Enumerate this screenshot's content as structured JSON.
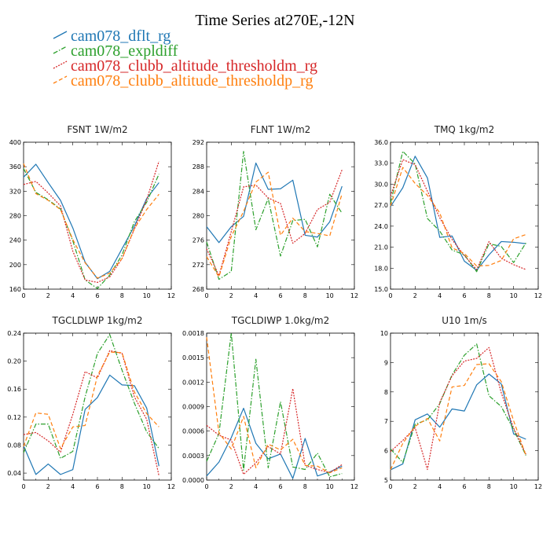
{
  "figure": {
    "title": "Time Series at270E,-12N"
  },
  "legend": [
    {
      "name": "cam078_dflt_rg",
      "color": "#1f77b4",
      "dash": "solid"
    },
    {
      "name": "cam078_expldiff",
      "color": "#2ca02c",
      "dash": "dashdot"
    },
    {
      "name": "cam078_clubb_altitude_thresholdm_rg",
      "color": "#d62728",
      "dash": "dotted"
    },
    {
      "name": "cam078_clubb_altitude_thresholdp_rg",
      "color": "#ff7f0e",
      "dash": "dashed"
    }
  ],
  "chart_data": [
    {
      "type": "line",
      "title": "FSNT 1W/m2",
      "x": [
        0,
        1,
        2,
        3,
        4,
        5,
        6,
        7,
        8,
        9,
        10,
        11
      ],
      "xlim": [
        0,
        12
      ],
      "xticks": [
        0,
        2,
        4,
        6,
        8,
        10,
        12
      ],
      "ylim": [
        160,
        400
      ],
      "yticks": [
        160,
        200,
        240,
        280,
        320,
        360,
        400
      ],
      "ytick_labels": [
        "160",
        "200",
        "240",
        "280",
        "320",
        "360",
        "400"
      ],
      "series": [
        {
          "name": "cam078_dflt_rg",
          "values": [
            343,
            364,
            334,
            305,
            260,
            204,
            177,
            189,
            226,
            263,
            308,
            334
          ]
        },
        {
          "name": "cam078_expldiff",
          "values": [
            357,
            318,
            306,
            291,
            239,
            175,
            161,
            183,
            216,
            270,
            302,
            348
          ]
        },
        {
          "name": "cam078_clubb_altitude_thresholdm_rg",
          "values": [
            331,
            336,
            317,
            296,
            222,
            175,
            171,
            180,
            210,
            258,
            306,
            369
          ]
        },
        {
          "name": "cam078_clubb_altitude_thresholdp_rg",
          "values": [
            365,
            316,
            305,
            290,
            241,
            203,
            178,
            186,
            210,
            259,
            290,
            315
          ]
        }
      ]
    },
    {
      "type": "line",
      "title": "FLNT 1W/m2",
      "x": [
        0,
        1,
        2,
        3,
        4,
        5,
        6,
        7,
        8,
        9,
        10,
        11
      ],
      "xlim": [
        0,
        12
      ],
      "xticks": [
        0,
        2,
        4,
        6,
        8,
        10,
        12
      ],
      "ylim": [
        268,
        292
      ],
      "yticks": [
        268,
        272,
        276,
        280,
        284,
        288,
        292
      ],
      "ytick_labels": [
        "268",
        "272",
        "276",
        "280",
        "284",
        "288",
        "292"
      ],
      "series": [
        {
          "name": "cam078_dflt_rg",
          "values": [
            278.2,
            275.6,
            278.2,
            279.9,
            288.6,
            284.3,
            284.4,
            285.8,
            276.8,
            276.5,
            279.0,
            284.8
          ]
        },
        {
          "name": "cam078_expldiff",
          "values": [
            275.7,
            269.6,
            270.9,
            290.5,
            277.7,
            282.8,
            273.4,
            279.2,
            279.4,
            274.9,
            283.5,
            280.4
          ]
        },
        {
          "name": "cam078_clubb_altitude_thresholdm_rg",
          "values": [
            274.6,
            270.2,
            277.4,
            284.7,
            285.0,
            282.9,
            282.0,
            275.5,
            277.1,
            281.0,
            282.2,
            287.5
          ]
        },
        {
          "name": "cam078_clubb_altitude_thresholdp_rg",
          "values": [
            273.3,
            270.0,
            276.6,
            280.7,
            285.5,
            287.1,
            276.8,
            279.6,
            277.4,
            277.1,
            276.7,
            283.6
          ]
        }
      ]
    },
    {
      "type": "line",
      "title": "TMQ 1kg/m2",
      "x": [
        0,
        1,
        2,
        3,
        4,
        5,
        6,
        7,
        8,
        9,
        10,
        11
      ],
      "xlim": [
        0,
        12
      ],
      "xticks": [
        0,
        2,
        4,
        6,
        8,
        10,
        12
      ],
      "ylim": [
        15,
        36
      ],
      "yticks": [
        15,
        18,
        21,
        24,
        27,
        30,
        33,
        36
      ],
      "ytick_labels": [
        "15.0",
        "18.0",
        "21.0",
        "24.0",
        "27.0",
        "30.0",
        "33.0",
        "36.0"
      ],
      "series": [
        {
          "name": "cam078_dflt_rg",
          "values": [
            26.8,
            29.5,
            34.0,
            30.9,
            22.4,
            22.6,
            19.0,
            17.7,
            19.9,
            21.8,
            21.7,
            21.5
          ]
        },
        {
          "name": "cam078_expldiff",
          "values": [
            27.3,
            34.7,
            32.9,
            25.1,
            23.3,
            20.6,
            19.9,
            17.5,
            21.5,
            21.1,
            18.8,
            21.6
          ]
        },
        {
          "name": "cam078_clubb_altitude_thresholdm_rg",
          "values": [
            28.3,
            33.5,
            32.8,
            29.0,
            25.2,
            22.1,
            19.8,
            17.8,
            21.8,
            19.4,
            18.5,
            17.8
          ]
        },
        {
          "name": "cam078_clubb_altitude_thresholdp_rg",
          "values": [
            26.9,
            32.4,
            30.1,
            28.4,
            25.9,
            20.9,
            20.1,
            18.3,
            18.4,
            19.1,
            22.2,
            22.8
          ]
        }
      ]
    },
    {
      "type": "line",
      "title": "TGCLDLWP 1kg/m2",
      "x": [
        0,
        1,
        2,
        3,
        4,
        5,
        6,
        7,
        8,
        9,
        10,
        11
      ],
      "xlim": [
        0,
        12
      ],
      "xticks": [
        0,
        2,
        4,
        6,
        8,
        10,
        12
      ],
      "ylim": [
        0.03,
        0.24
      ],
      "yticks": [
        0.04,
        0.08,
        0.12,
        0.16,
        0.2,
        0.24
      ],
      "ytick_labels": [
        "0.04",
        "0.08",
        "0.12",
        "0.16",
        "0.20",
        "0.24"
      ],
      "series": [
        {
          "name": "cam078_dflt_rg",
          "values": [
            0.079,
            0.038,
            0.053,
            0.038,
            0.045,
            0.131,
            0.148,
            0.18,
            0.166,
            0.165,
            0.133,
            0.05
          ]
        },
        {
          "name": "cam078_expldiff",
          "values": [
            0.069,
            0.11,
            0.11,
            0.061,
            0.071,
            0.149,
            0.211,
            0.238,
            0.187,
            0.14,
            0.099,
            0.075
          ]
        },
        {
          "name": "cam078_clubb_altitude_thresholdm_rg",
          "values": [
            0.095,
            0.098,
            0.086,
            0.07,
            0.124,
            0.185,
            0.176,
            0.215,
            0.211,
            0.149,
            0.117,
            0.036
          ]
        },
        {
          "name": "cam078_clubb_altitude_thresholdp_rg",
          "values": [
            0.078,
            0.126,
            0.124,
            0.075,
            0.106,
            0.108,
            0.179,
            0.213,
            0.212,
            0.156,
            0.125,
            0.106
          ]
        }
      ]
    },
    {
      "type": "line",
      "title": "TGCLDIWP 1.0kg/m2",
      "x": [
        0,
        1,
        2,
        3,
        4,
        5,
        6,
        7,
        8,
        9,
        10,
        11
      ],
      "xlim": [
        0,
        12
      ],
      "xticks": [
        0,
        2,
        4,
        6,
        8,
        10,
        12
      ],
      "ylim": [
        0,
        0.0018
      ],
      "yticks": [
        0,
        0.0003,
        0.0006,
        0.0009,
        0.0012,
        0.0015,
        0.0018
      ],
      "ytick_labels": [
        "0.0000",
        "0.0003",
        "0.0006",
        "0.0009",
        "0.0012",
        "0.0015",
        "0.0018"
      ],
      "series": [
        {
          "name": "cam078_dflt_rg",
          "values": [
            5e-05,
            0.00022,
            0.00052,
            0.00088,
            0.00045,
            0.00026,
            0.00032,
            2e-05,
            0.00051,
            5e-05,
            0.0001,
            0.00017
          ]
        },
        {
          "name": "cam078_expldiff",
          "values": [
            0.00023,
            0.00057,
            0.0018,
            0.00012,
            0.00148,
            0.00015,
            0.00096,
            0.00016,
            0.00013,
            0.00033,
            4e-05,
            8e-05
          ]
        },
        {
          "name": "cam078_clubb_altitude_thresholdm_rg",
          "values": [
            0.00067,
            0.00055,
            0.00049,
            7e-05,
            0.00021,
            0.00041,
            0.00032,
            0.00112,
            0.00018,
            0.00013,
            9e-05,
            0.00019
          ]
        },
        {
          "name": "cam078_clubb_altitude_thresholdp_rg",
          "values": [
            0.00175,
            0.00058,
            0.00038,
            0.00078,
            0.00015,
            0.00044,
            0.00037,
            0.0005,
            0.00018,
            0.00017,
            9e-05,
            0.00015
          ]
        }
      ]
    },
    {
      "type": "line",
      "title": "U10 1m/s",
      "x": [
        0,
        1,
        2,
        3,
        4,
        5,
        6,
        7,
        8,
        9,
        10,
        11
      ],
      "xlim": [
        0,
        12
      ],
      "xticks": [
        0,
        2,
        4,
        6,
        8,
        10,
        12
      ],
      "ylim": [
        5,
        10
      ],
      "yticks": [
        5,
        6,
        7,
        8,
        9,
        10
      ],
      "ytick_labels": [
        "5",
        "6",
        "7",
        "8",
        "9",
        "10"
      ],
      "series": [
        {
          "name": "cam078_dflt_rg",
          "values": [
            5.35,
            5.55,
            7.05,
            7.25,
            6.8,
            7.42,
            7.35,
            8.24,
            8.61,
            8.27,
            6.57,
            6.39
          ]
        },
        {
          "name": "cam078_expldiff",
          "values": [
            6.06,
            5.6,
            6.9,
            7.05,
            7.6,
            8.58,
            9.25,
            9.63,
            7.87,
            7.5,
            6.72,
            5.84
          ]
        },
        {
          "name": "cam078_clubb_altitude_thresholdm_rg",
          "values": [
            5.97,
            6.35,
            6.78,
            5.36,
            7.64,
            8.55,
            9.05,
            9.14,
            9.51,
            7.97,
            6.77,
            5.88
          ]
        },
        {
          "name": "cam078_clubb_altitude_thresholdp_rg",
          "values": [
            5.35,
            6.25,
            6.83,
            7.1,
            6.33,
            8.17,
            8.22,
            8.93,
            8.96,
            8.35,
            7.02,
            5.84
          ]
        }
      ]
    }
  ]
}
